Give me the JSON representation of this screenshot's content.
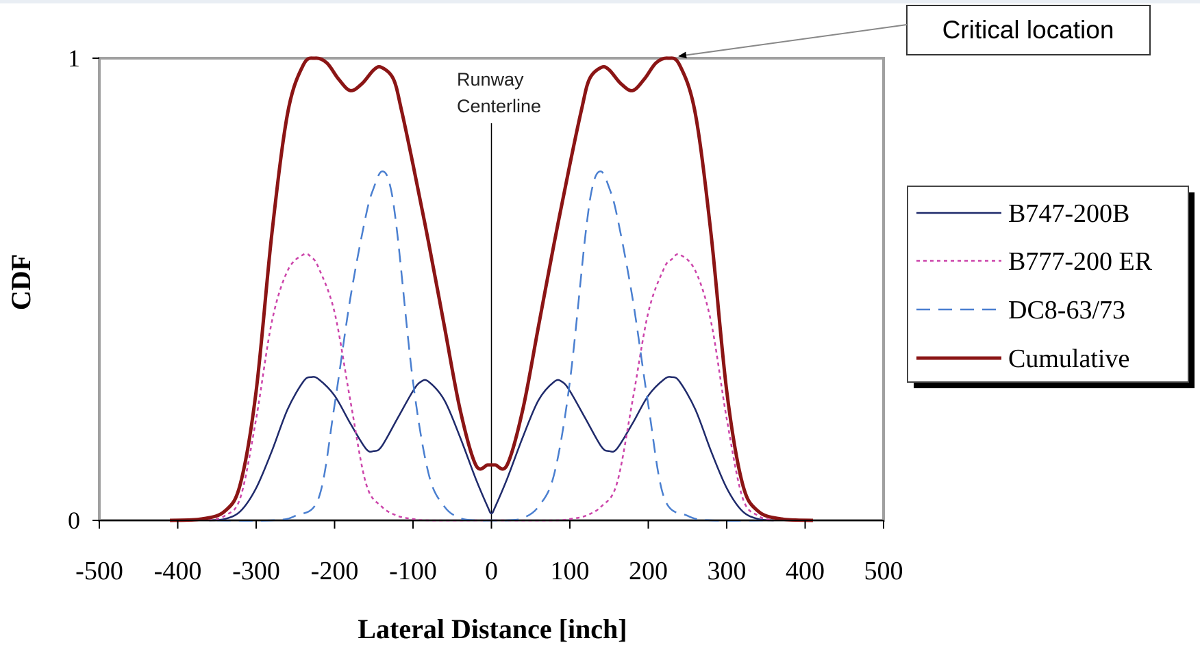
{
  "chart_data": {
    "type": "line",
    "xlabel": "Lateral Distance [inch]",
    "ylabel": "CDF",
    "xlim": [
      -500,
      500
    ],
    "ylim": [
      0,
      1
    ],
    "x_ticks": [
      "-500",
      "-400",
      "-300",
      "-200",
      "-100",
      "0",
      "100",
      "200",
      "300",
      "400",
      "500"
    ],
    "y_ticks": [
      "0",
      "1"
    ],
    "grid": false,
    "legend_position": "right",
    "annotations": {
      "centerline_line1": "Runway",
      "centerline_line2": "Centerline",
      "critical": "Critical location",
      "critical_point": [
        225,
        1.0
      ]
    },
    "series": [
      {
        "name": "B747-200B",
        "style": "solid",
        "color": "#1f2a6b",
        "points": [
          [
            -360,
            0
          ],
          [
            -340,
            0.003
          ],
          [
            -320,
            0.02
          ],
          [
            -300,
            0.07
          ],
          [
            -280,
            0.15
          ],
          [
            -260,
            0.24
          ],
          [
            -240,
            0.3
          ],
          [
            -230,
            0.31
          ],
          [
            -220,
            0.305
          ],
          [
            -200,
            0.27
          ],
          [
            -180,
            0.21
          ],
          [
            -160,
            0.155
          ],
          [
            -150,
            0.15
          ],
          [
            -140,
            0.16
          ],
          [
            -120,
            0.22
          ],
          [
            -100,
            0.28
          ],
          [
            -90,
            0.3
          ],
          [
            -80,
            0.3
          ],
          [
            -60,
            0.26
          ],
          [
            -40,
            0.18
          ],
          [
            -20,
            0.09
          ],
          [
            -5,
            0.03
          ],
          [
            0,
            0.015
          ],
          [
            5,
            0.03
          ],
          [
            20,
            0.09
          ],
          [
            40,
            0.18
          ],
          [
            60,
            0.26
          ],
          [
            80,
            0.3
          ],
          [
            90,
            0.3
          ],
          [
            100,
            0.28
          ],
          [
            120,
            0.22
          ],
          [
            140,
            0.16
          ],
          [
            150,
            0.15
          ],
          [
            160,
            0.155
          ],
          [
            180,
            0.21
          ],
          [
            200,
            0.27
          ],
          [
            220,
            0.305
          ],
          [
            230,
            0.31
          ],
          [
            240,
            0.3
          ],
          [
            260,
            0.24
          ],
          [
            280,
            0.15
          ],
          [
            300,
            0.07
          ],
          [
            320,
            0.02
          ],
          [
            340,
            0.003
          ],
          [
            360,
            0
          ]
        ]
      },
      {
        "name": "B777-200 ER",
        "style": "dotted",
        "color": "#cc44aa",
        "points": [
          [
            -360,
            0
          ],
          [
            -340,
            0.01
          ],
          [
            -320,
            0.05
          ],
          [
            -300,
            0.22
          ],
          [
            -280,
            0.43
          ],
          [
            -260,
            0.54
          ],
          [
            -240,
            0.575
          ],
          [
            -230,
            0.57
          ],
          [
            -220,
            0.545
          ],
          [
            -200,
            0.45
          ],
          [
            -180,
            0.26
          ],
          [
            -160,
            0.08
          ],
          [
            -140,
            0.03
          ],
          [
            -120,
            0.01
          ],
          [
            -100,
            0.003
          ],
          [
            -80,
            0
          ],
          [
            0,
            0
          ],
          [
            80,
            0
          ],
          [
            100,
            0.003
          ],
          [
            120,
            0.01
          ],
          [
            140,
            0.03
          ],
          [
            160,
            0.08
          ],
          [
            180,
            0.26
          ],
          [
            200,
            0.45
          ],
          [
            220,
            0.545
          ],
          [
            230,
            0.565
          ],
          [
            240,
            0.575
          ],
          [
            260,
            0.54
          ],
          [
            280,
            0.43
          ],
          [
            300,
            0.22
          ],
          [
            320,
            0.05
          ],
          [
            340,
            0.01
          ],
          [
            360,
            0
          ]
        ]
      },
      {
        "name": "DC8-63/73",
        "style": "dashed",
        "color": "#4a7fd0",
        "points": [
          [
            -350,
            0
          ],
          [
            -280,
            0
          ],
          [
            -250,
            0.01
          ],
          [
            -220,
            0.05
          ],
          [
            -200,
            0.25
          ],
          [
            -180,
            0.48
          ],
          [
            -160,
            0.66
          ],
          [
            -150,
            0.72
          ],
          [
            -140,
            0.755
          ],
          [
            -130,
            0.73
          ],
          [
            -120,
            0.62
          ],
          [
            -100,
            0.3
          ],
          [
            -80,
            0.1
          ],
          [
            -60,
            0.03
          ],
          [
            -40,
            0.005
          ],
          [
            -20,
            0
          ],
          [
            0,
            0
          ],
          [
            20,
            0
          ],
          [
            40,
            0.005
          ],
          [
            60,
            0.03
          ],
          [
            80,
            0.1
          ],
          [
            100,
            0.3
          ],
          [
            120,
            0.62
          ],
          [
            130,
            0.73
          ],
          [
            140,
            0.755
          ],
          [
            150,
            0.72
          ],
          [
            160,
            0.66
          ],
          [
            180,
            0.48
          ],
          [
            200,
            0.25
          ],
          [
            220,
            0.05
          ],
          [
            250,
            0.01
          ],
          [
            280,
            0
          ],
          [
            350,
            0
          ]
        ]
      },
      {
        "name": "Cumulative",
        "style": "thick",
        "color": "#8b1515",
        "points": [
          [
            -410,
            0
          ],
          [
            -370,
            0.003
          ],
          [
            -340,
            0.02
          ],
          [
            -320,
            0.08
          ],
          [
            -300,
            0.28
          ],
          [
            -280,
            0.62
          ],
          [
            -260,
            0.88
          ],
          [
            -240,
            0.985
          ],
          [
            -225,
            1.0
          ],
          [
            -210,
            0.99
          ],
          [
            -195,
            0.955
          ],
          [
            -180,
            0.93
          ],
          [
            -165,
            0.945
          ],
          [
            -150,
            0.975
          ],
          [
            -140,
            0.98
          ],
          [
            -125,
            0.955
          ],
          [
            -115,
            0.89
          ],
          [
            -100,
            0.77
          ],
          [
            -80,
            0.6
          ],
          [
            -60,
            0.42
          ],
          [
            -40,
            0.24
          ],
          [
            -20,
            0.12
          ],
          [
            -5,
            0.12
          ],
          [
            0,
            0.12
          ],
          [
            5,
            0.12
          ],
          [
            20,
            0.12
          ],
          [
            40,
            0.24
          ],
          [
            60,
            0.42
          ],
          [
            80,
            0.6
          ],
          [
            100,
            0.77
          ],
          [
            115,
            0.89
          ],
          [
            125,
            0.955
          ],
          [
            140,
            0.98
          ],
          [
            150,
            0.975
          ],
          [
            165,
            0.945
          ],
          [
            180,
            0.93
          ],
          [
            195,
            0.955
          ],
          [
            210,
            0.99
          ],
          [
            225,
            1.0
          ],
          [
            240,
            0.985
          ],
          [
            260,
            0.88
          ],
          [
            280,
            0.62
          ],
          [
            300,
            0.28
          ],
          [
            320,
            0.08
          ],
          [
            340,
            0.02
          ],
          [
            370,
            0.003
          ],
          [
            410,
            0
          ]
        ]
      }
    ]
  }
}
